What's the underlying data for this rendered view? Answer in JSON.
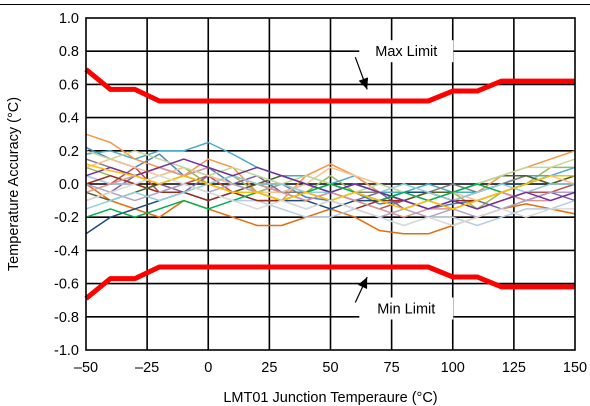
{
  "chart_data": {
    "type": "line",
    "title": "",
    "xlabel": "LMT01 Junction Temperaure (°C)",
    "ylabel": "Temperature Accuracy (°C)",
    "xlim": [
      -50,
      150
    ],
    "ylim": [
      -1.0,
      1.0
    ],
    "x_ticks": [
      -50,
      -25,
      0,
      25,
      50,
      75,
      100,
      125,
      150
    ],
    "x_tick_labels": [
      "–50",
      "–25",
      "0",
      "25",
      "50",
      "75",
      "100",
      "125",
      "150"
    ],
    "y_ticks": [
      -1.0,
      -0.8,
      -0.6,
      -0.4,
      -0.2,
      0.0,
      0.2,
      0.4,
      0.6,
      0.8,
      1.0
    ],
    "y_tick_labels": [
      "-1.0",
      "-0.8",
      "-0.6",
      "-0.4",
      "-0.2",
      "0.0",
      "0.2",
      "0.4",
      "0.6",
      "0.8",
      "1.0"
    ],
    "grid": true,
    "x": [
      -50,
      -40,
      -30,
      -20,
      -10,
      0,
      10,
      20,
      30,
      40,
      50,
      60,
      70,
      80,
      90,
      100,
      110,
      120,
      130,
      140,
      150
    ],
    "limits": [
      {
        "name": "Max Limit",
        "color": "#ff0000",
        "values": [
          0.69,
          0.57,
          0.57,
          0.5,
          0.5,
          0.5,
          0.5,
          0.5,
          0.5,
          0.5,
          0.5,
          0.5,
          0.5,
          0.5,
          0.5,
          0.56,
          0.56,
          0.62,
          0.62,
          0.62,
          0.62
        ]
      },
      {
        "name": "Min Limit",
        "color": "#ff0000",
        "values": [
          -0.69,
          -0.57,
          -0.57,
          -0.5,
          -0.5,
          -0.5,
          -0.5,
          -0.5,
          -0.5,
          -0.5,
          -0.5,
          -0.5,
          -0.5,
          -0.5,
          -0.5,
          -0.56,
          -0.56,
          -0.62,
          -0.62,
          -0.62,
          -0.62
        ]
      }
    ],
    "annotations": [
      {
        "text": "Max Limit",
        "x": 81,
        "y": 0.8,
        "arrow_to": [
          65,
          0.57
        ]
      },
      {
        "text": "Min Limit",
        "x": 81,
        "y": -0.75,
        "arrow_to": [
          65,
          -0.56
        ]
      }
    ],
    "series": [
      {
        "color": "#4f81bd",
        "values": [
          0.22,
          0.15,
          0.1,
          0.18,
          0.05,
          0.1,
          0.0,
          -0.05,
          0.0,
          -0.08,
          -0.1,
          -0.05,
          -0.12,
          -0.1,
          -0.15,
          -0.12,
          -0.1,
          -0.05,
          0.0,
          0.05,
          0.05
        ]
      },
      {
        "color": "#c0504d",
        "values": [
          0.05,
          0.0,
          0.1,
          -0.05,
          0.0,
          0.05,
          -0.05,
          0.0,
          -0.05,
          -0.1,
          -0.05,
          -0.1,
          -0.15,
          -0.1,
          -0.05,
          -0.1,
          -0.15,
          -0.1,
          -0.05,
          -0.05,
          0.0
        ]
      },
      {
        "color": "#9bbb59",
        "values": [
          0.1,
          0.05,
          0.0,
          0.05,
          0.1,
          0.0,
          0.05,
          -0.05,
          0.0,
          -0.05,
          0.05,
          -0.05,
          -0.1,
          -0.05,
          -0.1,
          -0.05,
          -0.15,
          -0.05,
          0.0,
          0.1,
          0.1
        ]
      },
      {
        "color": "#8064a2",
        "values": [
          -0.1,
          -0.05,
          0.05,
          0.0,
          -0.05,
          0.05,
          0.0,
          0.05,
          -0.05,
          0.0,
          -0.05,
          -0.1,
          -0.05,
          -0.15,
          -0.1,
          -0.15,
          -0.1,
          -0.15,
          -0.1,
          -0.05,
          -0.1
        ]
      },
      {
        "color": "#4bacc6",
        "values": [
          0.18,
          0.2,
          0.15,
          0.2,
          0.2,
          0.25,
          0.18,
          0.1,
          0.05,
          0.05,
          0.0,
          0.05,
          -0.05,
          -0.05,
          0.0,
          -0.05,
          -0.05,
          0.0,
          0.05,
          0.05,
          0.1
        ]
      },
      {
        "color": "#f79646",
        "values": [
          0.3,
          0.25,
          0.15,
          0.1,
          0.05,
          0.15,
          0.1,
          -0.05,
          -0.1,
          0.05,
          0.12,
          0.05,
          -0.05,
          -0.1,
          -0.05,
          -0.1,
          -0.05,
          0.05,
          0.1,
          0.15,
          0.2
        ]
      },
      {
        "color": "#e46c0a",
        "values": [
          0.0,
          -0.1,
          -0.15,
          -0.2,
          -0.1,
          -0.15,
          -0.2,
          -0.25,
          -0.25,
          -0.2,
          -0.15,
          -0.2,
          -0.28,
          -0.3,
          -0.3,
          -0.25,
          -0.2,
          -0.15,
          -0.12,
          -0.15,
          -0.18
        ]
      },
      {
        "color": "#1f497d",
        "values": [
          -0.3,
          -0.2,
          -0.15,
          -0.1,
          -0.05,
          -0.1,
          -0.05,
          -0.1,
          -0.1,
          -0.1,
          -0.15,
          -0.1,
          -0.1,
          -0.05,
          -0.05,
          -0.1,
          -0.05,
          0.0,
          0.0,
          0.05,
          0.05
        ]
      },
      {
        "color": "#b8cce4",
        "values": [
          0.05,
          0.0,
          0.0,
          -0.05,
          0.0,
          -0.05,
          -0.1,
          -0.1,
          -0.15,
          -0.2,
          -0.2,
          -0.15,
          -0.2,
          -0.25,
          -0.2,
          -0.2,
          -0.25,
          -0.2,
          -0.15,
          -0.15,
          -0.1
        ]
      },
      {
        "color": "#7f7f7f",
        "values": [
          0.15,
          0.1,
          0.05,
          0.1,
          0.05,
          0.0,
          0.05,
          0.0,
          -0.05,
          -0.05,
          0.0,
          -0.05,
          -0.05,
          -0.1,
          -0.05,
          0.0,
          -0.05,
          0.0,
          0.05,
          0.0,
          0.05
        ]
      },
      {
        "color": "#9b2d1f",
        "values": [
          0.0,
          0.05,
          0.0,
          -0.05,
          -0.05,
          -0.1,
          -0.05,
          -0.1,
          -0.1,
          -0.05,
          -0.1,
          -0.15,
          -0.1,
          -0.1,
          -0.15,
          -0.1,
          -0.1,
          -0.05,
          -0.1,
          -0.05,
          -0.05
        ]
      },
      {
        "color": "#4f6228",
        "values": [
          -0.05,
          -0.1,
          -0.05,
          0.0,
          0.05,
          0.0,
          -0.05,
          0.0,
          0.05,
          0.0,
          -0.05,
          0.0,
          -0.05,
          -0.1,
          -0.05,
          -0.05,
          0.0,
          0.05,
          0.05,
          0.0,
          0.05
        ]
      },
      {
        "color": "#fac090",
        "values": [
          0.1,
          0.15,
          0.1,
          0.05,
          0.1,
          0.05,
          0.0,
          -0.05,
          -0.05,
          0.0,
          0.1,
          0.05,
          0.0,
          -0.05,
          -0.1,
          -0.05,
          -0.1,
          -0.05,
          0.0,
          0.05,
          0.0
        ]
      },
      {
        "color": "#d99694",
        "values": [
          -0.05,
          0.0,
          0.05,
          0.1,
          0.05,
          0.1,
          0.05,
          0.0,
          -0.05,
          -0.1,
          -0.05,
          -0.1,
          -0.15,
          -0.2,
          -0.15,
          -0.15,
          -0.1,
          -0.05,
          -0.1,
          -0.1,
          -0.05
        ]
      },
      {
        "color": "#c3d69b",
        "values": [
          0.2,
          0.15,
          0.2,
          0.15,
          0.1,
          0.05,
          0.1,
          0.05,
          0.0,
          0.05,
          0.0,
          -0.05,
          0.0,
          -0.05,
          -0.1,
          -0.05,
          0.0,
          0.05,
          0.1,
          0.1,
          0.15
        ]
      },
      {
        "color": "#b3a2c7",
        "values": [
          0.0,
          -0.05,
          -0.1,
          -0.05,
          0.0,
          -0.05,
          0.0,
          -0.05,
          -0.1,
          -0.15,
          -0.1,
          -0.15,
          -0.2,
          -0.15,
          -0.2,
          -0.15,
          -0.2,
          -0.15,
          -0.1,
          -0.05,
          -0.05
        ]
      },
      {
        "color": "#92cddc",
        "values": [
          -0.15,
          -0.1,
          -0.05,
          -0.1,
          -0.05,
          0.0,
          0.05,
          0.0,
          0.0,
          -0.05,
          -0.05,
          0.0,
          -0.05,
          0.0,
          -0.05,
          -0.1,
          -0.05,
          0.0,
          -0.05,
          0.0,
          0.0
        ]
      },
      {
        "color": "#7030a0",
        "values": [
          0.05,
          0.1,
          0.05,
          0.1,
          0.15,
          0.1,
          0.05,
          0.1,
          0.05,
          0.0,
          -0.05,
          0.0,
          -0.05,
          -0.1,
          -0.15,
          -0.1,
          -0.15,
          -0.1,
          -0.05,
          -0.1,
          -0.05
        ]
      },
      {
        "color": "#00b050",
        "values": [
          -0.2,
          -0.15,
          -0.2,
          -0.15,
          -0.1,
          -0.15,
          -0.1,
          -0.05,
          -0.1,
          -0.05,
          0.0,
          -0.05,
          -0.1,
          -0.05,
          -0.1,
          -0.05,
          0.0,
          -0.05,
          0.0,
          0.05,
          0.05
        ]
      },
      {
        "color": "#ffc000",
        "values": [
          0.12,
          0.08,
          0.05,
          0.0,
          0.05,
          0.0,
          -0.05,
          -0.05,
          -0.1,
          -0.05,
          -0.1,
          -0.05,
          -0.1,
          -0.15,
          -0.1,
          -0.15,
          -0.1,
          -0.05,
          0.0,
          0.05,
          0.05
        ]
      },
      {
        "color": "#d9d9d9",
        "values": [
          -0.1,
          -0.05,
          0.0,
          0.05,
          0.0,
          -0.05,
          -0.1,
          -0.15,
          -0.1,
          -0.15,
          -0.1,
          -0.15,
          -0.2,
          -0.25,
          -0.2,
          -0.25,
          -0.2,
          -0.15,
          -0.2,
          -0.15,
          -0.15
        ]
      }
    ]
  }
}
